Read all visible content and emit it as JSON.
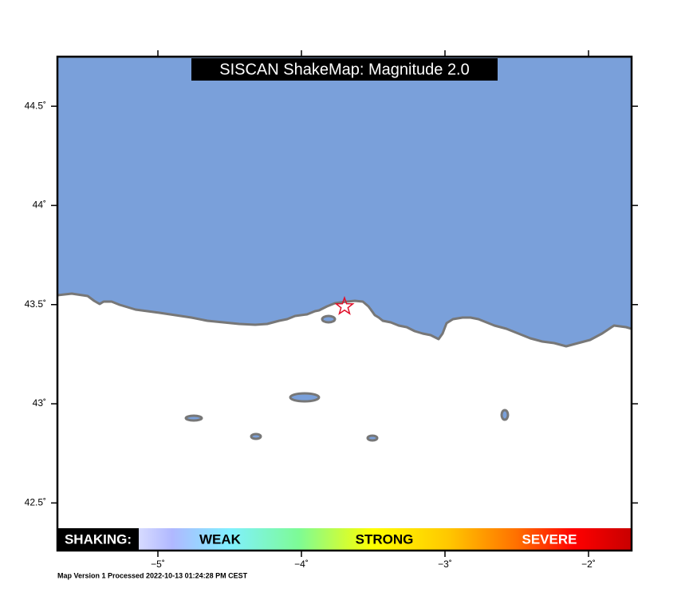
{
  "map": {
    "title": "SISCAN ShakeMap: Magnitude 2.0",
    "xlim": [
      -5.7,
      -1.7
    ],
    "ylim": [
      42.26,
      44.75
    ],
    "xticks": [
      {
        "value": -5,
        "label": "−5˚"
      },
      {
        "value": -4,
        "label": "−4˚"
      },
      {
        "value": -3,
        "label": "−3˚"
      },
      {
        "value": -2,
        "label": "−2˚"
      }
    ],
    "yticks": [
      {
        "value": 42.5,
        "label": "42.5˚"
      },
      {
        "value": 43,
        "label": "43˚"
      },
      {
        "value": 43.5,
        "label": "43.5˚"
      },
      {
        "value": 44,
        "label": "44˚"
      },
      {
        "value": 44.5,
        "label": "44.5˚"
      }
    ],
    "epicenter": {
      "lon": -3.7,
      "lat": 43.49
    }
  },
  "legend": {
    "label": "SHAKING:",
    "levels": [
      "WEAK",
      "STRONG",
      "SEVERE"
    ]
  },
  "footer": "Map Version 1 Processed 2022-10-13 01:24:28 PM CEST"
}
